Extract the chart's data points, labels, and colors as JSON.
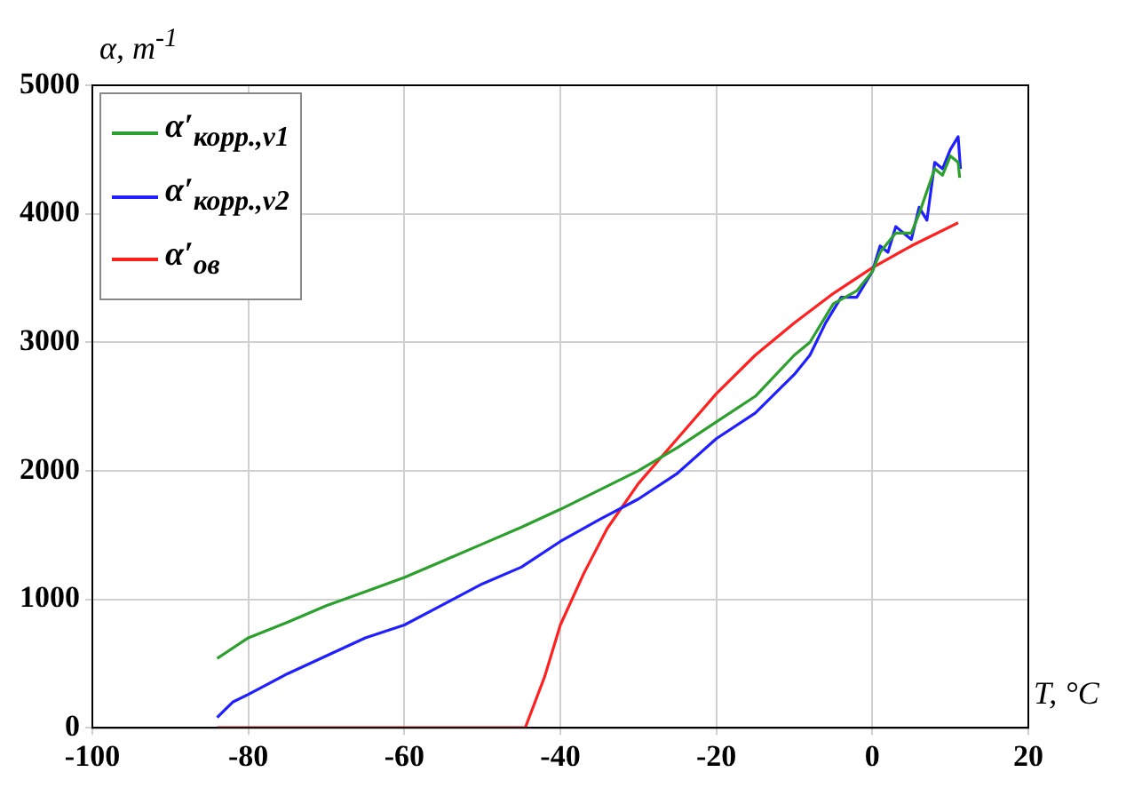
{
  "chart_data": {
    "type": "line",
    "xlabel": "T, °C",
    "ylabel": "α, m$^{-1}$",
    "xlim": [
      -100,
      20
    ],
    "xticks": [
      -100,
      -80,
      -60,
      -40,
      -20,
      0,
      20
    ],
    "ylim": [
      0,
      5000
    ],
    "yticks": [
      0,
      1000,
      2000,
      3000,
      4000,
      5000
    ],
    "grid": true,
    "legend": "top left",
    "marker": "none",
    "line_style": "solid",
    "series": [
      {
        "name": "α′$_{корр.,v1}$",
        "color": "#2ca02c",
        "x": [
          -84,
          -80,
          -75,
          -70,
          -65,
          -60,
          -55,
          -50,
          -45,
          -40,
          -35,
          -30,
          -25,
          -20,
          -15,
          -10,
          -8,
          -5,
          -2,
          0,
          1,
          3,
          5,
          6,
          8,
          9,
          10,
          11,
          11.2
        ],
        "values": [
          540,
          700,
          820,
          950,
          1060,
          1170,
          1300,
          1430,
          1560,
          1700,
          1850,
          2000,
          2180,
          2380,
          2580,
          2900,
          3000,
          3300,
          3400,
          3550,
          3700,
          3850,
          3850,
          4000,
          4350,
          4300,
          4450,
          4400,
          4280
        ]
      },
      {
        "name": "α′$_{корр.,v2}$",
        "color": "#1f1fff",
        "x": [
          -84,
          -82,
          -80,
          -75,
          -70,
          -65,
          -60,
          -55,
          -50,
          -45,
          -40,
          -35,
          -30,
          -25,
          -20,
          -15,
          -10,
          -8,
          -6,
          -4,
          -2,
          0,
          1,
          2,
          3,
          5,
          6,
          7,
          8,
          9,
          10,
          11,
          11.3
        ],
        "values": [
          80,
          200,
          260,
          420,
          560,
          700,
          800,
          960,
          1120,
          1250,
          1450,
          1620,
          1780,
          1980,
          2250,
          2450,
          2750,
          2900,
          3150,
          3350,
          3350,
          3550,
          3750,
          3700,
          3900,
          3800,
          4050,
          3950,
          4400,
          4350,
          4500,
          4600,
          4350
        ]
      },
      {
        "name": "α′$_{ов}$",
        "color": "#ff2020",
        "x": [
          -84,
          -44.5,
          -42,
          -40,
          -37,
          -34,
          -30,
          -25,
          -20,
          -15,
          -10,
          -5,
          0,
          5,
          11
        ],
        "values": [
          0,
          0,
          400,
          800,
          1200,
          1550,
          1900,
          2250,
          2600,
          2900,
          3150,
          3380,
          3580,
          3750,
          3930
        ]
      }
    ]
  }
}
